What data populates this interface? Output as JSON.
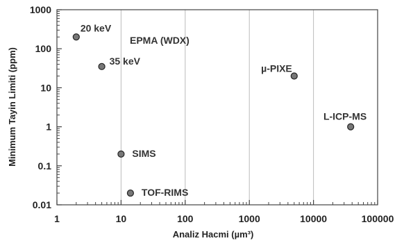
{
  "chart_data": {
    "type": "scatter",
    "title": "",
    "xlabel": "Analiz Hacmi (µm³)",
    "ylabel": "Minimum Tayin Limiti (ppm)",
    "xscale": "log",
    "yscale": "log",
    "xlim": [
      1,
      100000
    ],
    "ylim": [
      0.01,
      1000
    ],
    "grid": "vertical-major",
    "x_ticks": [
      "1",
      "10",
      "100",
      "1000",
      "10000",
      "100000"
    ],
    "y_ticks": [
      "1000",
      "100",
      "10",
      "1",
      "0.1",
      "0.01"
    ],
    "points": [
      {
        "label": "20 keV",
        "x": 2,
        "y": 200
      },
      {
        "label": "35 keV",
        "x": 5,
        "y": 35
      },
      {
        "label": "µ-PIXE",
        "x": 5000,
        "y": 20
      },
      {
        "label": "L-ICP-MS",
        "x": 38000,
        "y": 1
      },
      {
        "label": "SIMS",
        "x": 10,
        "y": 0.2
      },
      {
        "label": "TOF-RIMS",
        "x": 14,
        "y": 0.02
      }
    ],
    "annotations": [
      {
        "text": "EPMA (WDX)"
      }
    ],
    "point_color": "#777777"
  }
}
